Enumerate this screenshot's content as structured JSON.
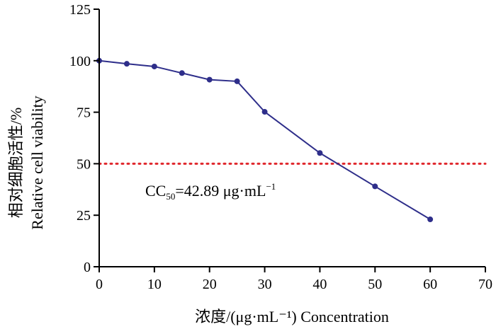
{
  "chart_data": {
    "type": "line",
    "title": "",
    "xlabel": "浓度/(μg·mL⁻¹) Concentration",
    "ylabel_cn": "相对细胞活性/%",
    "ylabel_en": "Relative cell viability",
    "xlim": [
      0,
      70
    ],
    "ylim": [
      0,
      125
    ],
    "x_ticks": [
      0,
      10,
      20,
      30,
      40,
      50,
      60,
      70
    ],
    "y_ticks": [
      0,
      25,
      50,
      75,
      100,
      125
    ],
    "grid": false,
    "series": [
      {
        "color": "#2e2e8a",
        "x": [
          0,
          5,
          10,
          15,
          20,
          25,
          30,
          40,
          50,
          60
        ],
        "y": [
          100,
          98.5,
          97.2,
          94,
          90.8,
          90,
          75.2,
          55.2,
          39,
          23
        ]
      }
    ],
    "reference_line": {
      "y": 50,
      "color": "#e0282d",
      "style": "dotted"
    },
    "annotation": {
      "prefix": "CC",
      "subscript": "50",
      "value": "=42.89 μg·mL",
      "superscript": "−1"
    }
  }
}
